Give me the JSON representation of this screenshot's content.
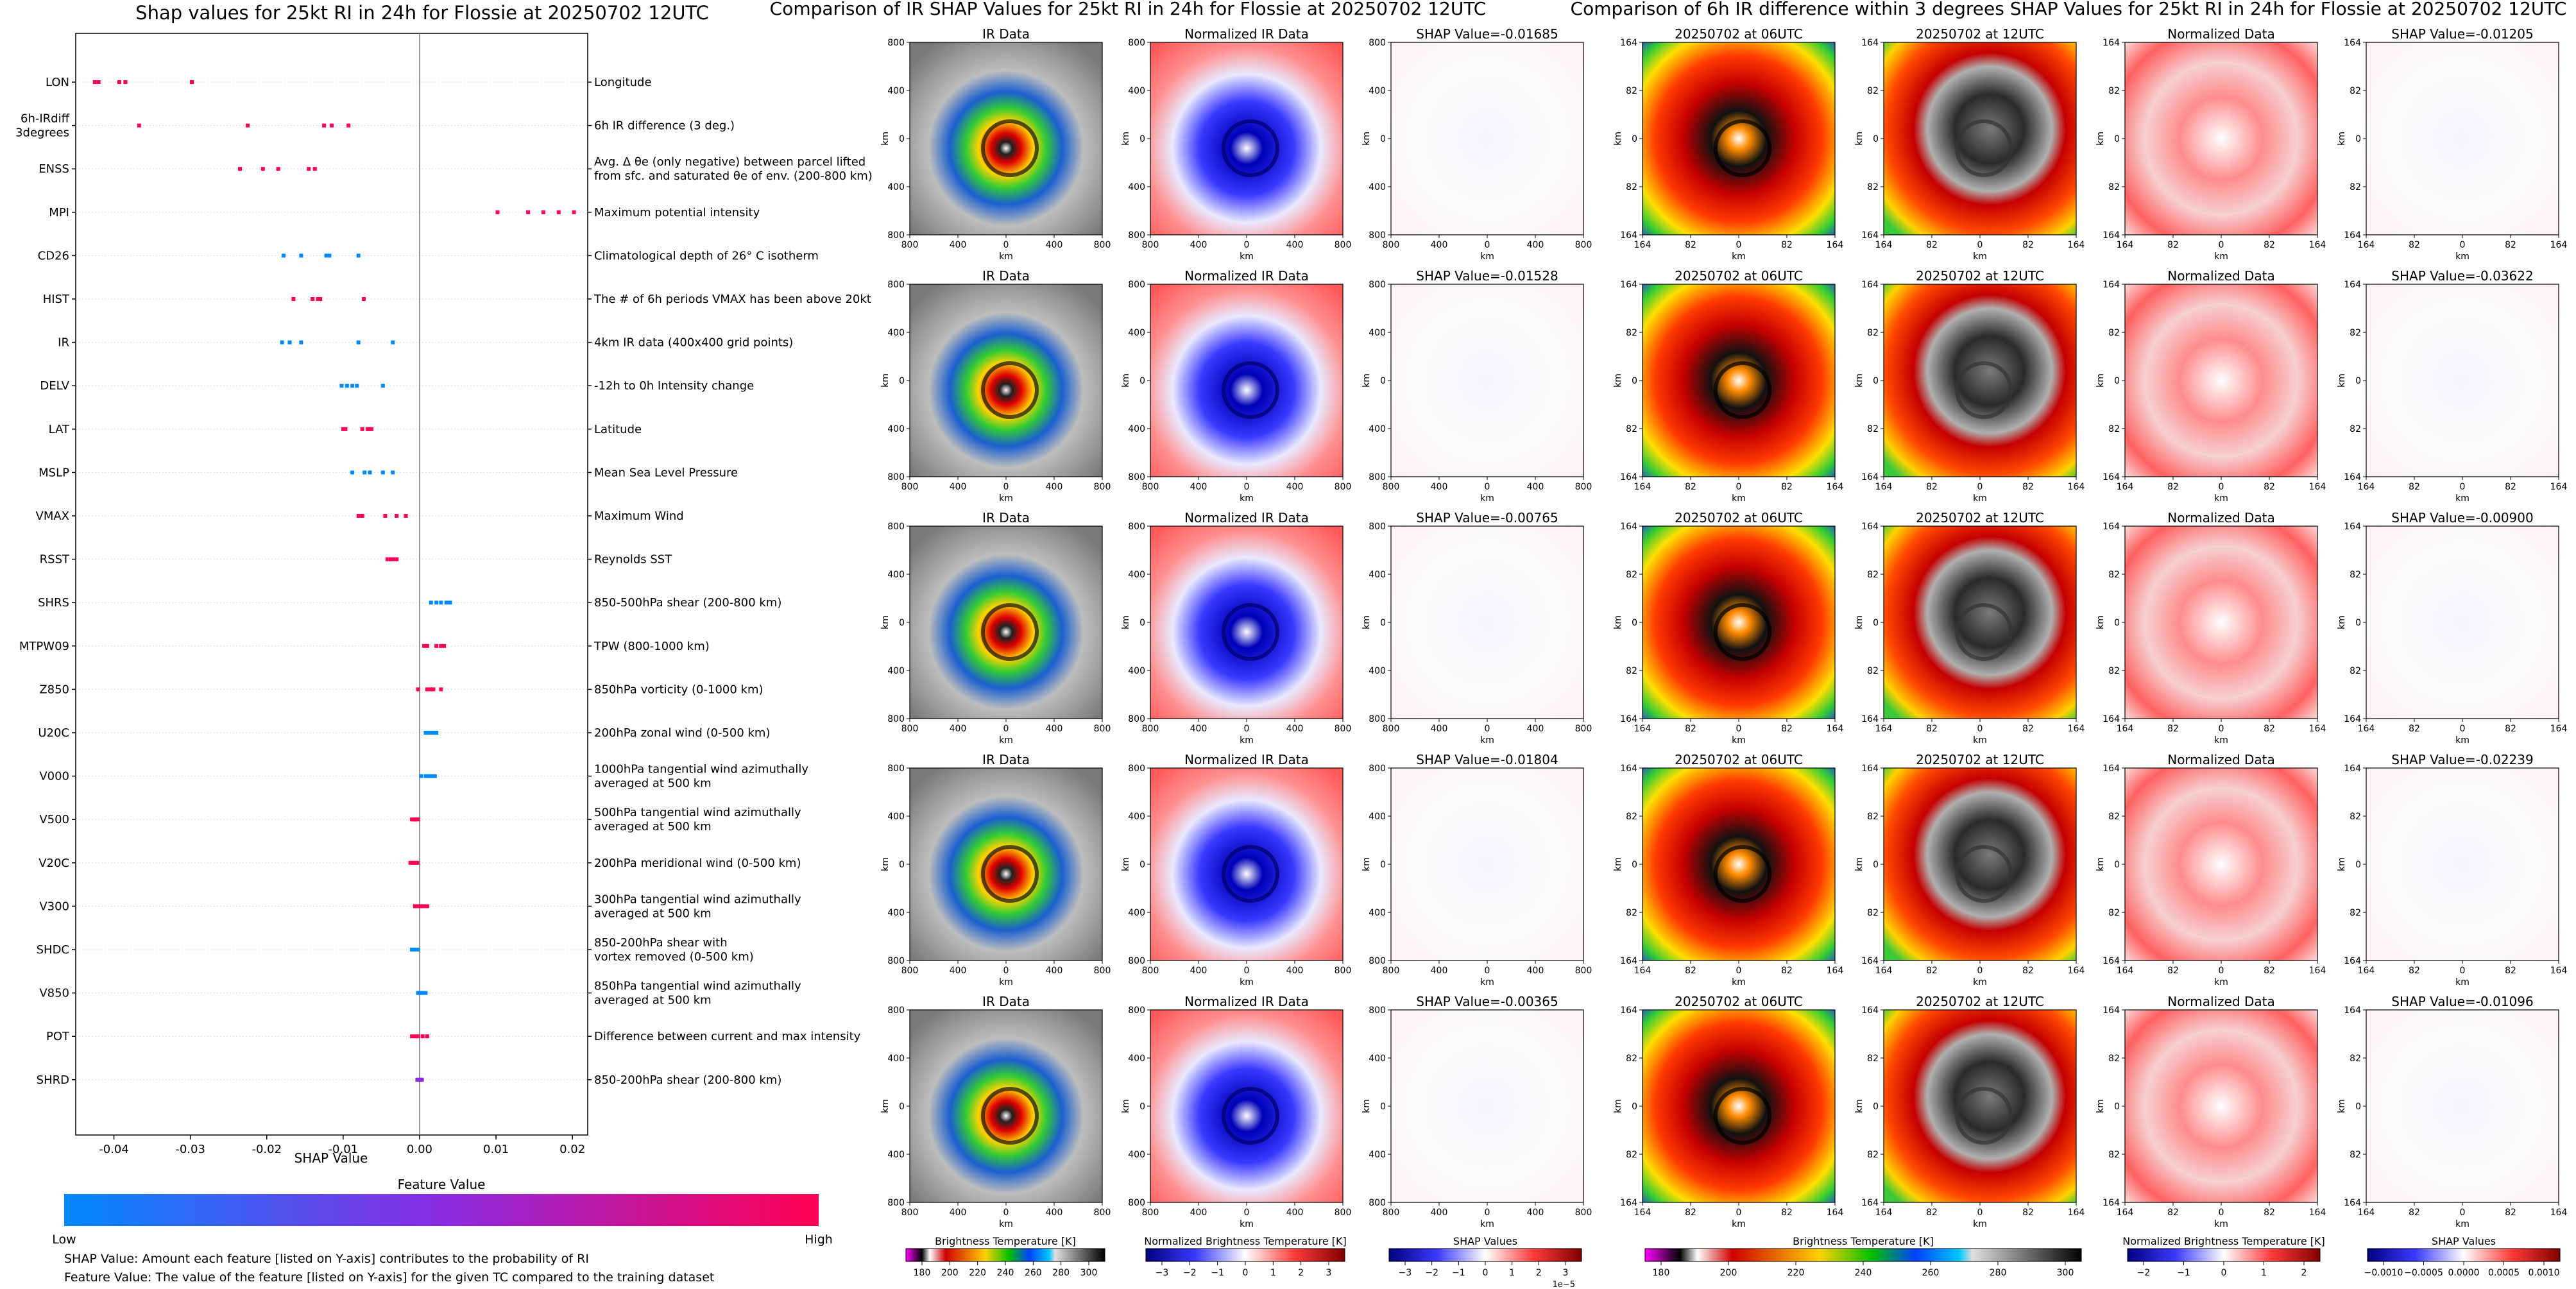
{
  "colors": {
    "low": "#008afb",
    "mid": "#8a2be2",
    "high": "#ff0052",
    "shap_pos": "#ff0052",
    "shap_neg": "#1e88e5"
  },
  "left": {
    "title": "Shap values for 25kt RI in 24h for Flossie at 20250702 12UTC",
    "colorbar_title": "Feature Value",
    "colorbar_low": "Low",
    "colorbar_high": "High",
    "note1": "SHAP Value: Amount each feature [listed on Y-axis] contributes to the probability of RI",
    "note2": "Feature Value: The value of the feature [listed on Y-axis] for the given TC compared to the training dataset"
  },
  "chart_data": [
    {
      "type": "scatter",
      "title": "Shap values for 25kt RI in 24h for Flossie at 20250702 12UTC",
      "xlabel": "SHAP Value",
      "xlim": [
        -0.045,
        0.022
      ],
      "xticks": [
        "-0.04",
        "-0.03",
        "-0.02",
        "-0.01",
        "0.00",
        "0.01",
        "0.02"
      ],
      "xtick_values": [
        -0.04,
        -0.03,
        -0.02,
        -0.01,
        0.0,
        0.01,
        0.02
      ],
      "features": [
        {
          "name": "LON",
          "desc": "Longitude",
          "values": [
            -0.0425,
            -0.042,
            -0.0393,
            -0.0385,
            -0.0298
          ],
          "fv": [
            1,
            1,
            1,
            1,
            1
          ]
        },
        {
          "name": "6h-IRdiff\n3degrees",
          "desc": "6h IR difference (3 deg.)",
          "values": [
            -0.0367,
            -0.0225,
            -0.0125,
            -0.0115,
            -0.0093
          ],
          "fv": [
            1,
            1,
            1,
            1,
            1
          ]
        },
        {
          "name": "ENSS",
          "desc": "Avg. Δ θe (only negative) between parcel lifted\nfrom sfc. and saturated θe of env. (200-800 km)",
          "values": [
            -0.0235,
            -0.0205,
            -0.0185,
            -0.0145,
            -0.0137
          ],
          "fv": [
            1,
            1,
            1,
            1,
            1
          ]
        },
        {
          "name": "MPI",
          "desc": "Maximum potential intensity",
          "values": [
            0.0102,
            0.0142,
            0.0162,
            0.0182,
            0.0202
          ],
          "fv": [
            1,
            1,
            1,
            1,
            1
          ]
        },
        {
          "name": "CD26",
          "desc": "Climatological depth of 26° C isotherm",
          "values": [
            -0.0178,
            -0.0155,
            -0.0122,
            -0.0118,
            -0.008
          ],
          "fv": [
            0,
            0,
            0,
            0,
            0
          ]
        },
        {
          "name": "HIST",
          "desc": "The # of 6h periods VMAX has been above 20kt",
          "values": [
            -0.0165,
            -0.014,
            -0.0133,
            -0.013,
            -0.0073
          ],
          "fv": [
            1,
            1,
            1,
            1,
            1
          ]
        },
        {
          "name": "IR",
          "desc": "4km IR data (400x400 grid points)",
          "values": [
            -0.018,
            -0.017,
            -0.0155,
            -0.008,
            -0.0035
          ],
          "fv": [
            0,
            0,
            0,
            0,
            0
          ]
        },
        {
          "name": "DELV",
          "desc": "-12h to 0h Intensity change",
          "values": [
            -0.0102,
            -0.0095,
            -0.0088,
            -0.0082,
            -0.0048
          ],
          "fv": [
            0,
            0,
            0,
            0,
            0
          ]
        },
        {
          "name": "LAT",
          "desc": "Latitude",
          "values": [
            -0.01,
            -0.0097,
            -0.0075,
            -0.0068,
            -0.0063
          ],
          "fv": [
            1,
            1,
            1,
            1,
            1
          ]
        },
        {
          "name": "MSLP",
          "desc": "Mean Sea Level Pressure",
          "values": [
            -0.0088,
            -0.0072,
            -0.0065,
            -0.0048,
            -0.0035
          ],
          "fv": [
            0,
            0,
            0,
            0,
            0
          ]
        },
        {
          "name": "VMAX",
          "desc": "Maximum Wind",
          "values": [
            -0.008,
            -0.0075,
            -0.0045,
            -0.003,
            -0.0018
          ],
          "fv": [
            1,
            1,
            1,
            1,
            1
          ]
        },
        {
          "name": "RSST",
          "desc": "Reynolds SST",
          "values": [
            -0.0042,
            -0.0038,
            -0.0035,
            -0.0032,
            -0.003
          ],
          "fv": [
            1,
            1,
            1,
            1,
            1
          ]
        },
        {
          "name": "SHRS",
          "desc": "850-500hPa shear (200-800 km)",
          "values": [
            0.0015,
            0.0022,
            0.0028,
            0.0035,
            0.004
          ],
          "fv": [
            0,
            0,
            0,
            0,
            0
          ]
        },
        {
          "name": "MTPW09",
          "desc": "TPW (800-1000 km)",
          "values": [
            0.0006,
            0.001,
            0.0022,
            0.0028,
            0.0032
          ],
          "fv": [
            1,
            1,
            1,
            1,
            1
          ]
        },
        {
          "name": "Z850",
          "desc": "850hPa vorticity (0-1000 km)",
          "values": [
            -0.0002,
            0.001,
            0.0015,
            0.0018,
            0.0028
          ],
          "fv": [
            1,
            1,
            1,
            1,
            1
          ]
        },
        {
          "name": "U20C",
          "desc": "200hPa zonal wind (0-500 km)",
          "values": [
            0.0008,
            0.0012,
            0.0015,
            0.0018,
            0.0022
          ],
          "fv": [
            0,
            0,
            0,
            0,
            0
          ]
        },
        {
          "name": "V000",
          "desc": "1000hPa tangential wind azimuthally\naveraged at 500 km",
          "values": [
            0.0002,
            0.0008,
            0.0012,
            0.0016,
            0.002
          ],
          "fv": [
            0,
            0,
            0,
            0,
            0
          ]
        },
        {
          "name": "V500",
          "desc": "500hPa tangential wind azimuthally\naveraged at 500 km",
          "values": [
            -0.001,
            -0.0008,
            -0.0006,
            -0.0004,
            -0.0002
          ],
          "fv": [
            1,
            1,
            1,
            1,
            1
          ]
        },
        {
          "name": "V20C",
          "desc": "200hPa meridional wind (0-500 km)",
          "values": [
            -0.0012,
            -0.001,
            -0.0007,
            -0.0005,
            -0.0003
          ],
          "fv": [
            1,
            1,
            1,
            1,
            1
          ]
        },
        {
          "name": "V300",
          "desc": "300hPa tangential wind azimuthally\naveraged at 500 km",
          "values": [
            -0.0006,
            -0.0002,
            0.0002,
            0.0005,
            0.001
          ],
          "fv": [
            1,
            1,
            1,
            1,
            1
          ]
        },
        {
          "name": "SHDC",
          "desc": "850-200hPa shear with\nvortex removed (0-500 km)",
          "values": [
            -0.001,
            -0.0008,
            -0.0006,
            -0.0004,
            -0.0002
          ],
          "fv": [
            0,
            0,
            0,
            0,
            0
          ]
        },
        {
          "name": "V850",
          "desc": "850hPa tangential wind azimuthally\naveraged at 500 km",
          "values": [
            -0.0002,
            0.0,
            0.0002,
            0.0004,
            0.0008
          ],
          "fv": [
            0,
            0,
            0,
            0,
            0
          ]
        },
        {
          "name": "POT",
          "desc": "Difference between current and max intensity",
          "values": [
            -0.001,
            -0.0006,
            -0.0002,
            0.0004,
            0.001
          ],
          "fv": [
            1,
            1,
            1,
            1,
            1
          ]
        },
        {
          "name": "SHRD",
          "desc": "850-200hPa shear (200-800 km)",
          "values": [
            -0.0003,
            -0.0001,
            0.0001,
            0.0002,
            0.0003
          ],
          "fv": [
            0.5,
            0.5,
            0.5,
            0.5,
            0.5
          ]
        }
      ]
    },
    {
      "type": "heatmap",
      "title": "Comparison of IR SHAP Values for 25kt RI in 24h for Flossie at 20250702 12UTC",
      "col_titles": [
        "IR Data",
        "Normalized IR Data"
      ],
      "shap_titles": [
        "SHAP Value=-0.01685",
        "SHAP Value=-0.01528",
        "SHAP Value=-0.00765",
        "SHAP Value=-0.01804",
        "SHAP Value=-0.00365"
      ],
      "ticks": [
        "0",
        "400",
        "800"
      ],
      "xticks": [
        "800",
        "400",
        "0",
        "400",
        "800"
      ],
      "axis_label": "km",
      "colorbars": [
        {
          "label": "Brightness Temperature [K]",
          "ticks": [
            "180",
            "200",
            "220",
            "240",
            "260",
            "280",
            "300"
          ]
        },
        {
          "label": "Normalized Brightness Temperature [K]",
          "ticks": [
            "−3",
            "−2",
            "−1",
            "0",
            "1",
            "2",
            "3"
          ]
        },
        {
          "label": "SHAP Values",
          "ticks": [
            "−3",
            "−2",
            "−1",
            "0",
            "1",
            "2",
            "3"
          ],
          "offset": "1e−5"
        }
      ]
    },
    {
      "type": "heatmap",
      "title": "Comparison of 6h IR difference within 3 degrees SHAP Values for 25kt RI in 24h for Flossie at 20250702 12UTC",
      "col_titles": [
        "20250702 at 06UTC",
        "20250702 at 12UTC",
        "Normalized Data"
      ],
      "shap_titles": [
        "SHAP Value=-0.01205",
        "SHAP Value=-0.03622",
        "SHAP Value=-0.00900",
        "SHAP Value=-0.02239",
        "SHAP Value=-0.01096"
      ],
      "ticks": [
        "164",
        "82",
        "0",
        "82",
        "164"
      ],
      "axis_label": "km",
      "colorbars": [
        {
          "label": "Brightness Temperature [K]",
          "ticks": [
            "180",
            "200",
            "220",
            "240",
            "260",
            "280",
            "300"
          ]
        },
        {
          "label": "Normalized Brightness Temperature [K]",
          "ticks": [
            "−2",
            "−1",
            "0",
            "1",
            "2"
          ]
        },
        {
          "label": "SHAP Values",
          "ticks": [
            "−0.0010",
            "−0.0005",
            "0.0000",
            "0.0005",
            "0.0010"
          ]
        }
      ]
    }
  ]
}
